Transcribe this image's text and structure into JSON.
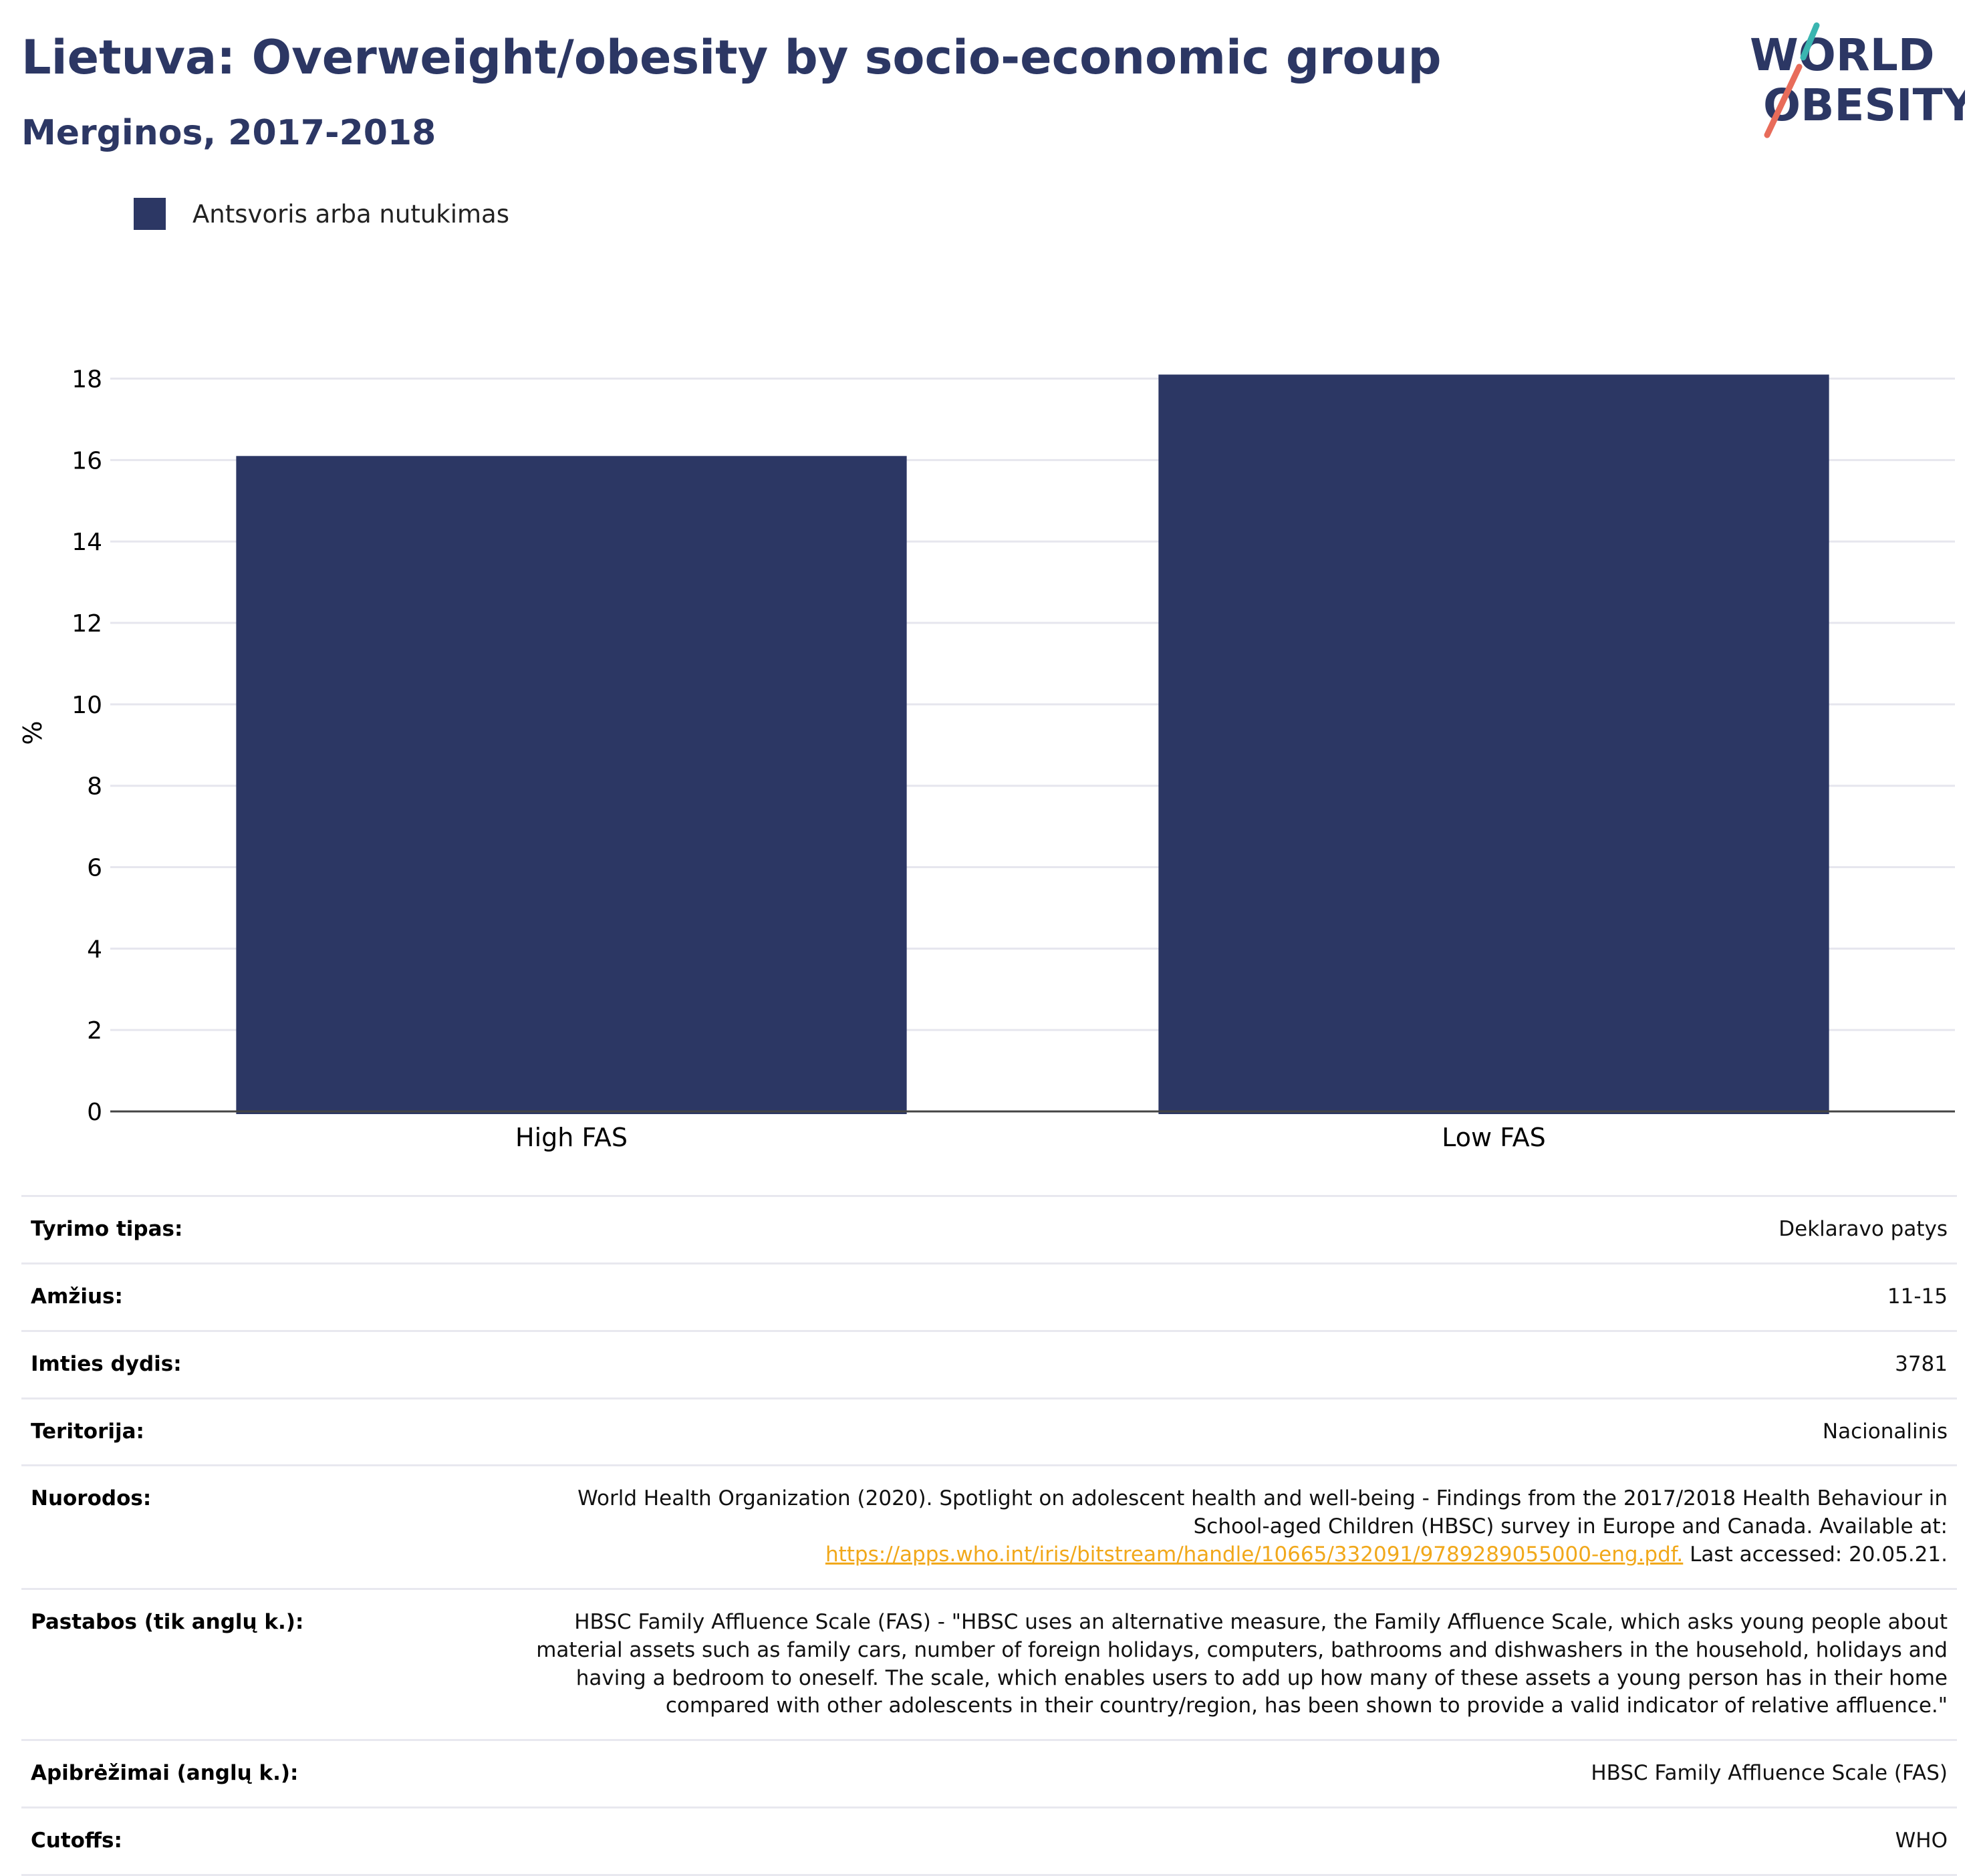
{
  "header": {
    "title": "Lietuva: Overweight/obesity by socio-economic group",
    "subtitle": "Merginos, 2017-2018"
  },
  "logo": {
    "line1": "WORLD",
    "line2": "OBESITY",
    "colors": {
      "text": "#2c3764",
      "slash_top": "#3ab5b0",
      "slash_bottom": "#e86c5a"
    }
  },
  "legend": {
    "items": [
      {
        "label": "Antsvoris arba nutukimas",
        "color": "#2c3764"
      }
    ]
  },
  "chart_data": {
    "type": "bar",
    "categories": [
      "High FAS",
      "Low FAS"
    ],
    "series": [
      {
        "name": "Antsvoris arba nutukimas",
        "values": [
          16.1,
          18.1
        ],
        "color": "#2c3764"
      }
    ],
    "ylabel": "%",
    "xlabel": "",
    "ylim": [
      0,
      18.6
    ],
    "yticks": [
      0,
      2,
      4,
      6,
      8,
      10,
      12,
      14,
      16,
      18
    ],
    "grid": true
  },
  "info": {
    "rows": [
      {
        "label": "Tyrimo tipas:",
        "value": "Deklaravo patys"
      },
      {
        "label": "Amžius:",
        "value": "11-15"
      },
      {
        "label": "Imties dydis:",
        "value": "3781"
      },
      {
        "label": "Teritorija:",
        "value": "Nacionalinis"
      },
      {
        "label": "Nuorodos:",
        "value": "World Health Organization (2020). Spotlight on adolescent health and well-being - Findings from the 2017/2018 Health Behaviour in School-aged Children (HBSC) survey in Europe and Canada. Available at:",
        "link": "https://apps.who.int/iris/bitstream/handle/10665/332091/9789289055000-eng.pdf.",
        "after": " Last accessed: 20.05.21."
      },
      {
        "label": "Pastabos (tik anglų k.):",
        "value": "HBSC Family Affluence Scale (FAS) - \"HBSC uses an alternative measure, the Family Affluence Scale, which asks young people about material assets such as family cars, number of foreign holidays, computers, bathrooms and dishwashers in the household, holidays and having a bedroom to oneself. The scale, which enables users to add up how many of these assets a young person has in their home compared with other adolescents in their country/region, has been shown to provide a valid indicator of relative affluence.\""
      },
      {
        "label": "Apibrėžimai (anglų k.):",
        "value": "HBSC Family Affluence Scale (FAS)"
      },
      {
        "label": "Cutoffs:",
        "value": "WHO"
      }
    ]
  }
}
